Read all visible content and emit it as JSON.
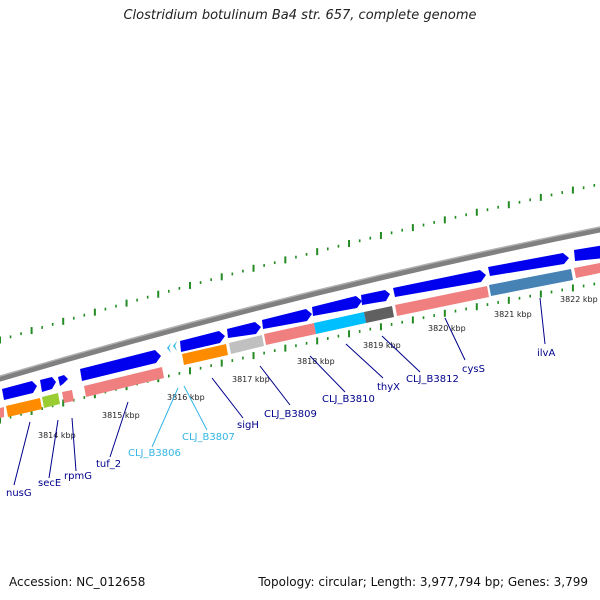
{
  "title": "Clostridium botulinum Ba4 str. 657, complete genome",
  "footer": {
    "accession": "Accession: NC_012658",
    "summary": "Topology: circular; Length: 3,977,794 bp; Genes: 3,799"
  },
  "kbp_labels": [
    "3814 kbp",
    "3815 kbp",
    "3816 kbp",
    "3817 kbp",
    "3818 kbp",
    "3819 kbp",
    "3820 kbp",
    "3821 kbp",
    "3822 kbp"
  ],
  "gene_labels": [
    {
      "text": "nusG",
      "color": "#00008b"
    },
    {
      "text": "secE",
      "color": "#00008b"
    },
    {
      "text": "rpmG",
      "color": "#00008b"
    },
    {
      "text": "tuf_2",
      "color": "#00008b"
    },
    {
      "text": "CLJ_B3806",
      "color": "#33b5e5"
    },
    {
      "text": "CLJ_B3807",
      "color": "#33b5e5"
    },
    {
      "text": "sigH",
      "color": "#00008b"
    },
    {
      "text": "CLJ_B3809",
      "color": "#00008b"
    },
    {
      "text": "CLJ_B3810",
      "color": "#00008b"
    },
    {
      "text": "thyX",
      "color": "#00008b"
    },
    {
      "text": "CLJ_B3812",
      "color": "#00008b"
    },
    {
      "text": "cysS",
      "color": "#00008b"
    },
    {
      "text": "ilvA",
      "color": "#00008b"
    }
  ],
  "colors": {
    "gene_blue": "#0000ee",
    "cds_salmon": "#f08080",
    "cds_orange": "#ff8c00",
    "cds_lime": "#9acd32",
    "cds_cyan": "#00bfff",
    "cds_gray": "#c0c0c0",
    "cds_dark": "#606060",
    "cds_steel": "#4682b4",
    "backbone": "#808080",
    "ticks": "#228b22"
  }
}
